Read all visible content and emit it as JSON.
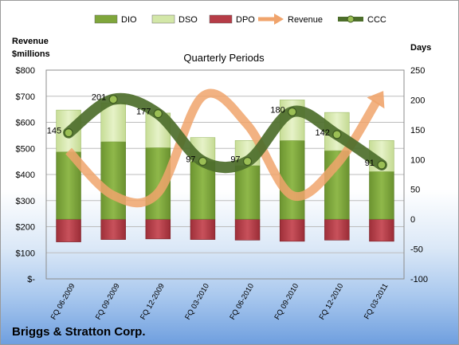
{
  "chart_data": {
    "type": "bar",
    "title": "Quarterly Periods",
    "left_axis_label": "Revenue\n$millions",
    "right_axis_label": "Days",
    "company": "Briggs & Stratton Corp.",
    "categories": [
      "FQ 06-2009",
      "FQ 09-2009",
      "FQ 12-2009",
      "FQ 03-2010",
      "FQ 06-2010",
      "FQ 09-2010",
      "FQ 12-2010",
      "FQ 03-2011"
    ],
    "left_ticks": [
      "$-",
      "$100",
      "$200",
      "$300",
      "$400",
      "$500",
      "$600",
      "$700",
      "$800"
    ],
    "right_ticks": [
      "-100",
      "-50",
      "0",
      "50",
      "100",
      "150",
      "200",
      "250"
    ],
    "left_ylim": [
      0,
      800
    ],
    "right_ylim": [
      -100,
      250
    ],
    "legend_position": "top",
    "series": [
      {
        "name": "DIO",
        "type": "stacked-bar",
        "axis": "right",
        "color": "#7fa63b",
        "values": [
          113,
          130,
          120,
          97,
          90,
          132,
          115,
          80
        ]
      },
      {
        "name": "DSO",
        "type": "stacked-bar",
        "axis": "right",
        "color": "#d3e7a8",
        "values": [
          70,
          65,
          58,
          40,
          42,
          68,
          64,
          52
        ]
      },
      {
        "name": "DPO",
        "type": "stacked-bar",
        "axis": "right",
        "color": "#b63c47",
        "values": [
          -38,
          -34,
          -33,
          -34,
          -35,
          -37,
          -35,
          -37
        ]
      },
      {
        "name": "Revenue",
        "type": "line",
        "axis": "left",
        "color": "#f0a46c",
        "values": [
          490,
          320,
          330,
          700,
          590,
          320,
          440,
          710
        ]
      },
      {
        "name": "CCC",
        "type": "line",
        "axis": "right",
        "color": "#4d6e2b",
        "values": [
          145,
          201,
          177,
          97,
          97,
          180,
          142,
          91
        ],
        "labels": [
          "145",
          "201",
          "177",
          "97",
          "97",
          "180",
          "142",
          "91"
        ]
      }
    ]
  }
}
